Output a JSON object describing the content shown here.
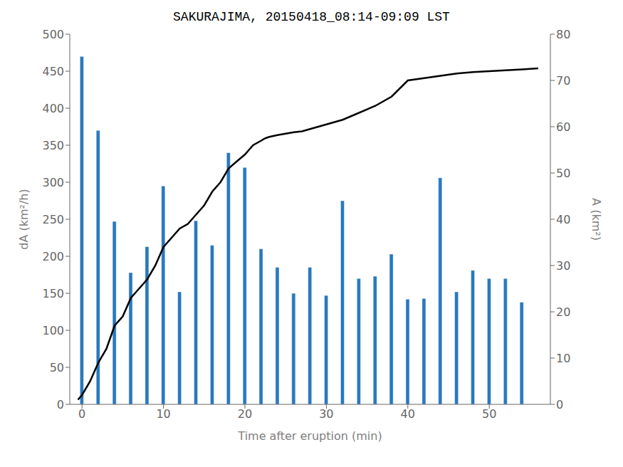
{
  "chart_data": {
    "type": "bar",
    "title": "SAKURAJIMA, 20150418_08:14-09:09 LST",
    "xlabel": "Time after eruption (min)",
    "ylabel": "dA (km²/h)",
    "y2label": "A (km²)",
    "xlim": [
      -1.5,
      57.5
    ],
    "xticks": [
      0,
      10,
      20,
      30,
      40,
      50
    ],
    "ylim": [
      0,
      500
    ],
    "yticks": [
      0,
      50,
      100,
      150,
      200,
      250,
      300,
      350,
      400,
      450,
      500
    ],
    "y2lim": [
      0,
      80
    ],
    "y2ticks": [
      0,
      10,
      20,
      30,
      40,
      50,
      60,
      70,
      80
    ],
    "grid": false,
    "series": [
      {
        "type": "bar",
        "color": "#2878BE",
        "x": [
          0,
          2,
          4,
          6,
          8,
          10,
          12,
          14,
          16,
          18,
          20,
          22,
          24,
          26,
          28,
          30,
          32,
          34,
          36,
          38,
          40,
          42,
          44,
          46,
          48,
          50,
          52,
          54
        ],
        "values": [
          470,
          370,
          247,
          178,
          213,
          295,
          152,
          248,
          215,
          340,
          320,
          210,
          185,
          150,
          185,
          147,
          275,
          170,
          173,
          203,
          142,
          143,
          306,
          152,
          181,
          170,
          170,
          138
        ]
      },
      {
        "type": "line",
        "axis": "y2",
        "color": "black",
        "x": [
          -0.5,
          0,
          1,
          2,
          3,
          4,
          5,
          6,
          7,
          8,
          9,
          10,
          11,
          12,
          13,
          14,
          15,
          16,
          17,
          18,
          19,
          20,
          20.5,
          21,
          21.5,
          22,
          22.5,
          23,
          24,
          25,
          26,
          27,
          28,
          29,
          30,
          31,
          32,
          34,
          36,
          38,
          40,
          42,
          44,
          46,
          48,
          50,
          52,
          54,
          56
        ],
        "values": [
          1,
          2,
          5,
          9,
          12,
          17,
          19,
          23,
          25,
          27,
          30,
          34,
          36,
          38,
          39,
          41,
          43,
          46,
          48,
          51,
          52.5,
          54,
          55,
          56,
          56.5,
          57,
          57.5,
          57.8,
          58.2,
          58.5,
          58.8,
          59,
          59.5,
          60,
          60.5,
          61,
          61.5,
          63,
          64.5,
          66.5,
          70,
          70.5,
          71,
          71.5,
          71.8,
          72,
          72.2,
          72.4,
          72.6
        ]
      }
    ]
  }
}
